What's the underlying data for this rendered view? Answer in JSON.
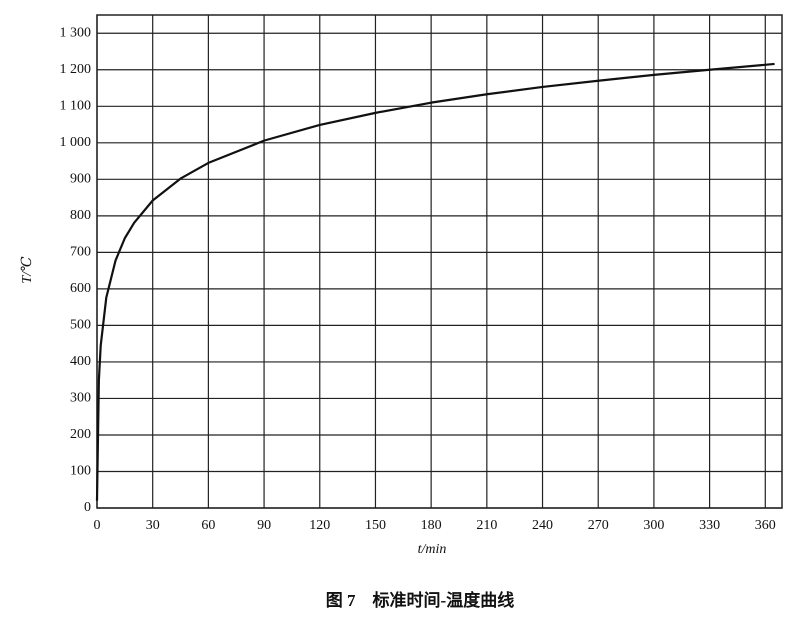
{
  "chart_data": {
    "type": "line",
    "caption": "图 7　标准时间-温度曲线",
    "x_label": "t/min",
    "y_label": "T/℃",
    "x": [
      0,
      1,
      2,
      5,
      10,
      15,
      20,
      30,
      45,
      60,
      90,
      120,
      150,
      180,
      210,
      240,
      270,
      300,
      330,
      365
    ],
    "series": [
      {
        "color": "#111111",
        "values": [
          20,
          349,
          445,
          576,
          678,
          739,
          781,
          842,
          902,
          945,
          1006,
          1049,
          1082,
          1110,
          1133,
          1153,
          1170,
          1186,
          1200,
          1216
        ]
      }
    ],
    "xlim": [
      0,
      369
    ],
    "ylim": [
      0,
      1350
    ],
    "xticks": [
      0,
      30,
      60,
      90,
      120,
      150,
      180,
      210,
      240,
      270,
      300,
      330,
      360
    ],
    "yticks": [
      0,
      100,
      200,
      300,
      400,
      500,
      600,
      700,
      800,
      900,
      {
        "value": 1000,
        "label": "1 000"
      },
      {
        "value": 1100,
        "label": "1 100"
      },
      {
        "value": 1200,
        "label": "1 200"
      },
      {
        "value": 1300,
        "label": "1 300"
      }
    ],
    "grid": true
  }
}
